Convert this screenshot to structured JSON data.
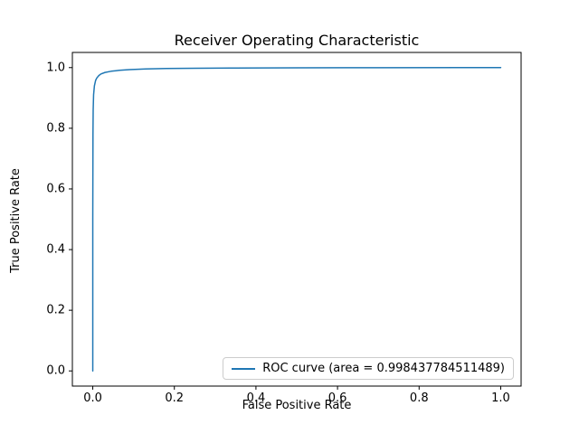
{
  "chart_data": {
    "type": "line",
    "title": "Receiver Operating Characteristic",
    "xlabel": "False Positive Rate",
    "ylabel": "True Positive Rate",
    "xlim": [
      -0.05,
      1.05
    ],
    "ylim": [
      -0.05,
      1.05
    ],
    "xticks": [
      0.0,
      0.2,
      0.4,
      0.6,
      0.8,
      1.0
    ],
    "yticks": [
      0.0,
      0.2,
      0.4,
      0.6,
      0.8,
      1.0
    ],
    "xtick_labels": [
      "0.0",
      "0.2",
      "0.4",
      "0.6",
      "0.8",
      "1.0"
    ],
    "ytick_labels": [
      "0.0",
      "0.2",
      "0.4",
      "0.6",
      "0.8",
      "1.0"
    ],
    "grid": false,
    "line_color": "#1f77b4",
    "auc": "0.998437784511489",
    "legend": {
      "position": "lower right",
      "entries": [
        {
          "label": "ROC curve (area = 0.998437784511489)",
          "color": "#1f77b4"
        }
      ]
    },
    "series": [
      {
        "name": "ROC curve",
        "color": "#1f77b4",
        "x": [
          0.0,
          0.0,
          0.0005,
          0.001,
          0.002,
          0.004,
          0.007,
          0.01,
          0.015,
          0.02,
          0.03,
          0.045,
          0.065,
          0.09,
          0.13,
          0.18,
          0.25,
          0.35,
          0.5,
          0.7,
          1.0
        ],
        "y": [
          0.0,
          0.5,
          0.78,
          0.86,
          0.91,
          0.94,
          0.958,
          0.966,
          0.974,
          0.979,
          0.984,
          0.988,
          0.991,
          0.9935,
          0.9955,
          0.997,
          0.998,
          0.9987,
          0.9993,
          0.9997,
          1.0
        ]
      }
    ]
  }
}
